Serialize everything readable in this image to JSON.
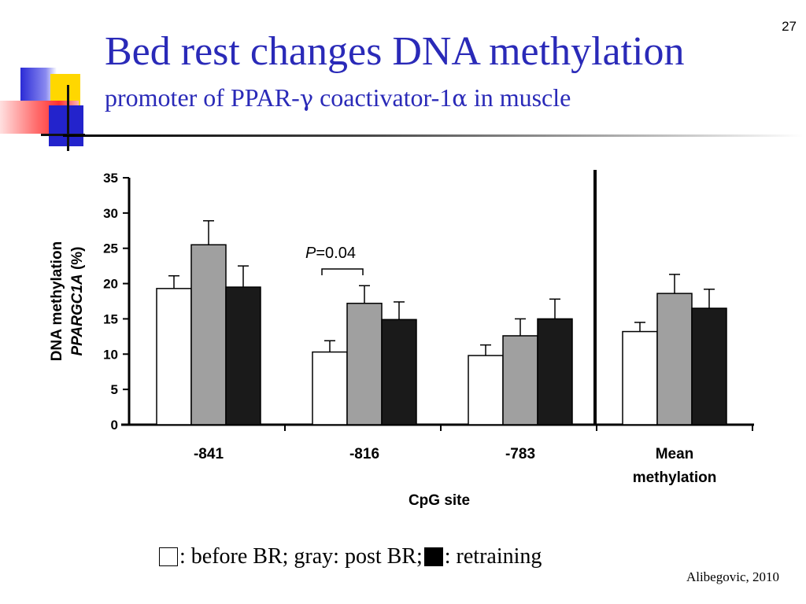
{
  "slide": {
    "number": "27",
    "title": "Bed rest changes DNA methylation",
    "subtitle_pre": "promoter of PPAR-",
    "subtitle_gamma": "γ",
    "subtitle_mid": " coactivator-1",
    "subtitle_alpha": "α",
    "subtitle_post": " in muscle",
    "legend_before": ": before BR; gray: post BR; ",
    "legend_after": ": retraining",
    "citation": "Alibegovic, 2010"
  },
  "colors": {
    "title": "#2a2ab8",
    "before": "#ffffff",
    "post": "#a0a0a0",
    "retraining": "#1a1a1a"
  },
  "chart_data": {
    "type": "bar",
    "categories": [
      "-841",
      "-816",
      "-783",
      "Mean methylation"
    ],
    "series": [
      {
        "name": "before BR",
        "values": [
          19.3,
          10.3,
          9.8,
          13.2
        ],
        "errors": [
          1.8,
          1.6,
          1.5,
          1.3
        ]
      },
      {
        "name": "post BR",
        "values": [
          25.5,
          17.2,
          12.6,
          18.6
        ],
        "errors": [
          3.4,
          2.5,
          2.4,
          2.7
        ]
      },
      {
        "name": "retraining",
        "values": [
          19.5,
          14.9,
          15.0,
          16.5
        ],
        "errors": [
          3.0,
          2.5,
          2.8,
          2.7
        ]
      }
    ],
    "xlabel": "CpG site",
    "ylabel": "DNA methylation",
    "ylabel_gene": "PPARGC1A",
    "ylabel_unit": "(%)",
    "ylim": [
      0,
      35
    ],
    "yticks": [
      0,
      5,
      10,
      15,
      20,
      25,
      30,
      35
    ],
    "grid": false,
    "annotation": {
      "prefix": "P",
      "text": "=0.04",
      "category": "-816"
    }
  }
}
